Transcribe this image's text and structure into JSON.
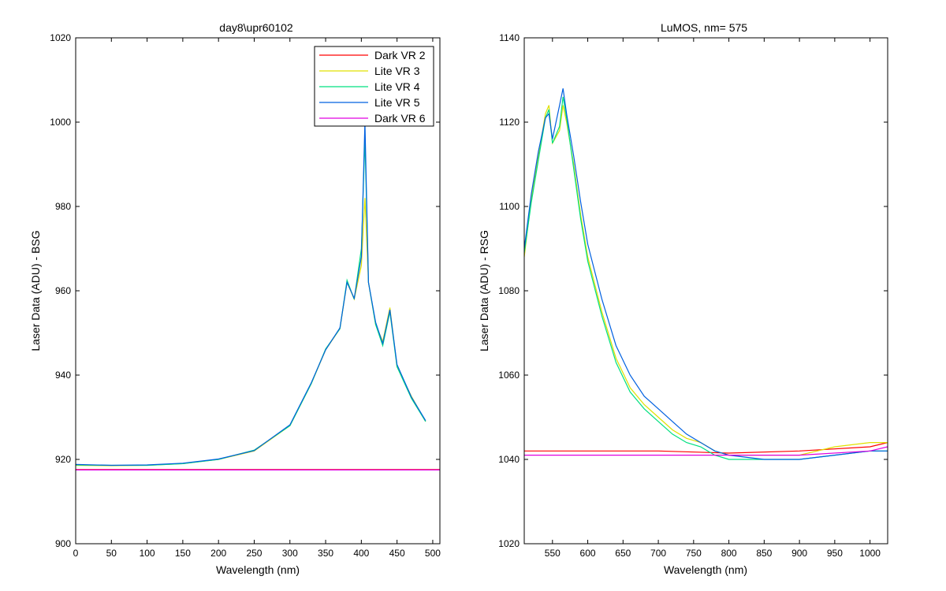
{
  "chart_data": [
    {
      "type": "line",
      "title": "day8\\upr60102",
      "xlabel": "Wavelength (nm)",
      "ylabel": "Laser Data (ADU) - BSG",
      "xlim": [
        0,
        510
      ],
      "ylim": [
        900,
        1020
      ],
      "xticks": [
        0,
        50,
        100,
        150,
        200,
        250,
        300,
        350,
        400,
        450,
        500
      ],
      "yticks": [
        900,
        920,
        940,
        960,
        980,
        1000,
        1020
      ],
      "grid": false,
      "legend": "top-right",
      "series": [
        {
          "name": "Dark VR 2",
          "color": "#ff0000",
          "x": [
            0,
            510
          ],
          "y": [
            917.6,
            917.6
          ]
        },
        {
          "name": "Lite VR 3",
          "color": "#e0e000",
          "x": [
            0,
            50,
            100,
            150,
            200,
            250,
            300,
            330,
            350,
            370,
            380,
            390,
            400,
            405,
            410,
            420,
            430,
            440,
            450,
            470,
            490
          ],
          "y": [
            918.6,
            918.5,
            918.6,
            919.0,
            920.0,
            922.0,
            928.0,
            938.0,
            946.0,
            951.0,
            962.0,
            958.0,
            966.0,
            982.0,
            962.0,
            952.0,
            948.0,
            956.0,
            942.0,
            935.0,
            929.0
          ]
        },
        {
          "name": "Lite VR 4",
          "color": "#00e080",
          "x": [
            0,
            50,
            100,
            150,
            200,
            250,
            300,
            330,
            350,
            370,
            380,
            390,
            400,
            405,
            410,
            420,
            430,
            440,
            450,
            470,
            490
          ],
          "y": [
            918.7,
            918.6,
            918.6,
            919.0,
            920.0,
            922.2,
            928.0,
            938.0,
            946.2,
            951.0,
            962.5,
            958.0,
            970.0,
            996.0,
            962.0,
            952.0,
            947.0,
            955.0,
            942.0,
            934.5,
            929.0
          ]
        },
        {
          "name": "Lite VR 5",
          "color": "#0060e0",
          "x": [
            0,
            50,
            100,
            150,
            200,
            250,
            300,
            330,
            350,
            370,
            380,
            390,
            400,
            405,
            410,
            420,
            430,
            440,
            450,
            470,
            490
          ],
          "y": [
            918.8,
            918.6,
            918.7,
            919.1,
            920.1,
            922.1,
            928.2,
            938.2,
            946.0,
            951.2,
            962.0,
            958.2,
            968.0,
            1000.0,
            962.0,
            952.5,
            947.5,
            955.5,
            942.5,
            934.8,
            929.2
          ]
        },
        {
          "name": "Dark VR 6",
          "color": "#e000e0",
          "x": [
            0,
            510
          ],
          "y": [
            917.5,
            917.5
          ]
        }
      ]
    },
    {
      "type": "line",
      "title": "LuMOS, nm= 575",
      "xlabel": "Wavelength (nm)",
      "ylabel": "Laser Data (ADU) - RSG",
      "xlim": [
        510,
        1025
      ],
      "ylim": [
        1020,
        1140
      ],
      "xticks": [
        550,
        600,
        650,
        700,
        750,
        800,
        850,
        900,
        950,
        1000
      ],
      "yticks": [
        1020,
        1040,
        1060,
        1080,
        1100,
        1120,
        1140
      ],
      "grid": false,
      "legend": "none",
      "series": [
        {
          "name": "Dark VR 2",
          "color": "#ff0000",
          "x": [
            510,
            600,
            700,
            800,
            900,
            1000,
            1025
          ],
          "y": [
            1042,
            1042,
            1042,
            1041.5,
            1042,
            1043,
            1044
          ]
        },
        {
          "name": "Lite VR 3",
          "color": "#e0e000",
          "x": [
            510,
            520,
            530,
            540,
            545,
            550,
            560,
            565,
            570,
            580,
            590,
            600,
            620,
            640,
            660,
            680,
            700,
            720,
            740,
            760,
            780,
            800,
            850,
            900,
            950,
            1000,
            1025
          ],
          "y": [
            1088,
            1102,
            1112,
            1122,
            1124,
            1115,
            1118,
            1124,
            1120,
            1110,
            1098,
            1088,
            1075,
            1064,
            1057,
            1053,
            1050,
            1047,
            1045,
            1044,
            1042,
            1041,
            1041,
            1041,
            1043,
            1044,
            1044
          ]
        },
        {
          "name": "Lite VR 4",
          "color": "#00e080",
          "x": [
            510,
            520,
            530,
            540,
            545,
            550,
            560,
            565,
            570,
            580,
            590,
            600,
            620,
            640,
            660,
            680,
            700,
            720,
            740,
            760,
            780,
            800,
            850,
            900,
            950,
            1000,
            1025
          ],
          "y": [
            1089,
            1101,
            1111,
            1121,
            1123,
            1115,
            1119,
            1126,
            1121,
            1109,
            1097,
            1087,
            1074,
            1063,
            1056,
            1052,
            1049,
            1046,
            1044,
            1043,
            1041,
            1040,
            1040,
            1040,
            1041,
            1042,
            1042
          ]
        },
        {
          "name": "Lite VR 5",
          "color": "#0060e0",
          "x": [
            510,
            520,
            530,
            540,
            545,
            550,
            560,
            565,
            570,
            580,
            590,
            600,
            620,
            640,
            660,
            680,
            700,
            720,
            740,
            760,
            780,
            800,
            850,
            900,
            950,
            1000,
            1025
          ],
          "y": [
            1090,
            1103,
            1113,
            1121,
            1122,
            1116,
            1124,
            1128,
            1122,
            1112,
            1101,
            1091,
            1078,
            1067,
            1060,
            1055,
            1052,
            1049,
            1046,
            1044,
            1042,
            1041,
            1040,
            1040,
            1041,
            1042,
            1042
          ]
        },
        {
          "name": "Dark VR 6",
          "color": "#e000e0",
          "x": [
            510,
            600,
            700,
            800,
            900,
            1000,
            1025
          ],
          "y": [
            1041,
            1041,
            1041,
            1041,
            1041,
            1042,
            1043
          ]
        }
      ]
    }
  ]
}
